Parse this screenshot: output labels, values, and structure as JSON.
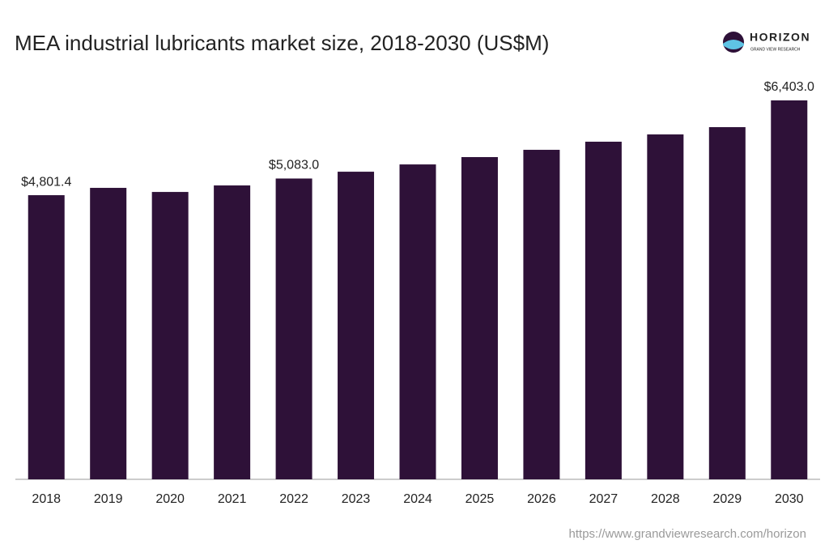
{
  "chart_data": {
    "type": "bar",
    "title": "MEA industrial lubricants market size, 2018-2030 (US$M)",
    "logo": "HORIZON",
    "logo_subtitle": "GRAND VIEW RESEARCH",
    "source": "https://www.grandviewresearch.com/horizon",
    "categories": [
      "2018",
      "2019",
      "2020",
      "2021",
      "2022",
      "2023",
      "2024",
      "2025",
      "2026",
      "2027",
      "2028",
      "2029",
      "2030"
    ],
    "values": [
      4801.4,
      4925,
      4856,
      4966,
      5083.0,
      5198,
      5321,
      5445,
      5568,
      5705,
      5828,
      5951,
      6403.0
    ],
    "value_labels": [
      "$4,801.4",
      null,
      null,
      null,
      "$5,083.0",
      null,
      null,
      null,
      null,
      null,
      null,
      null,
      "$6,403.0"
    ],
    "color": "#2e1138"
  }
}
